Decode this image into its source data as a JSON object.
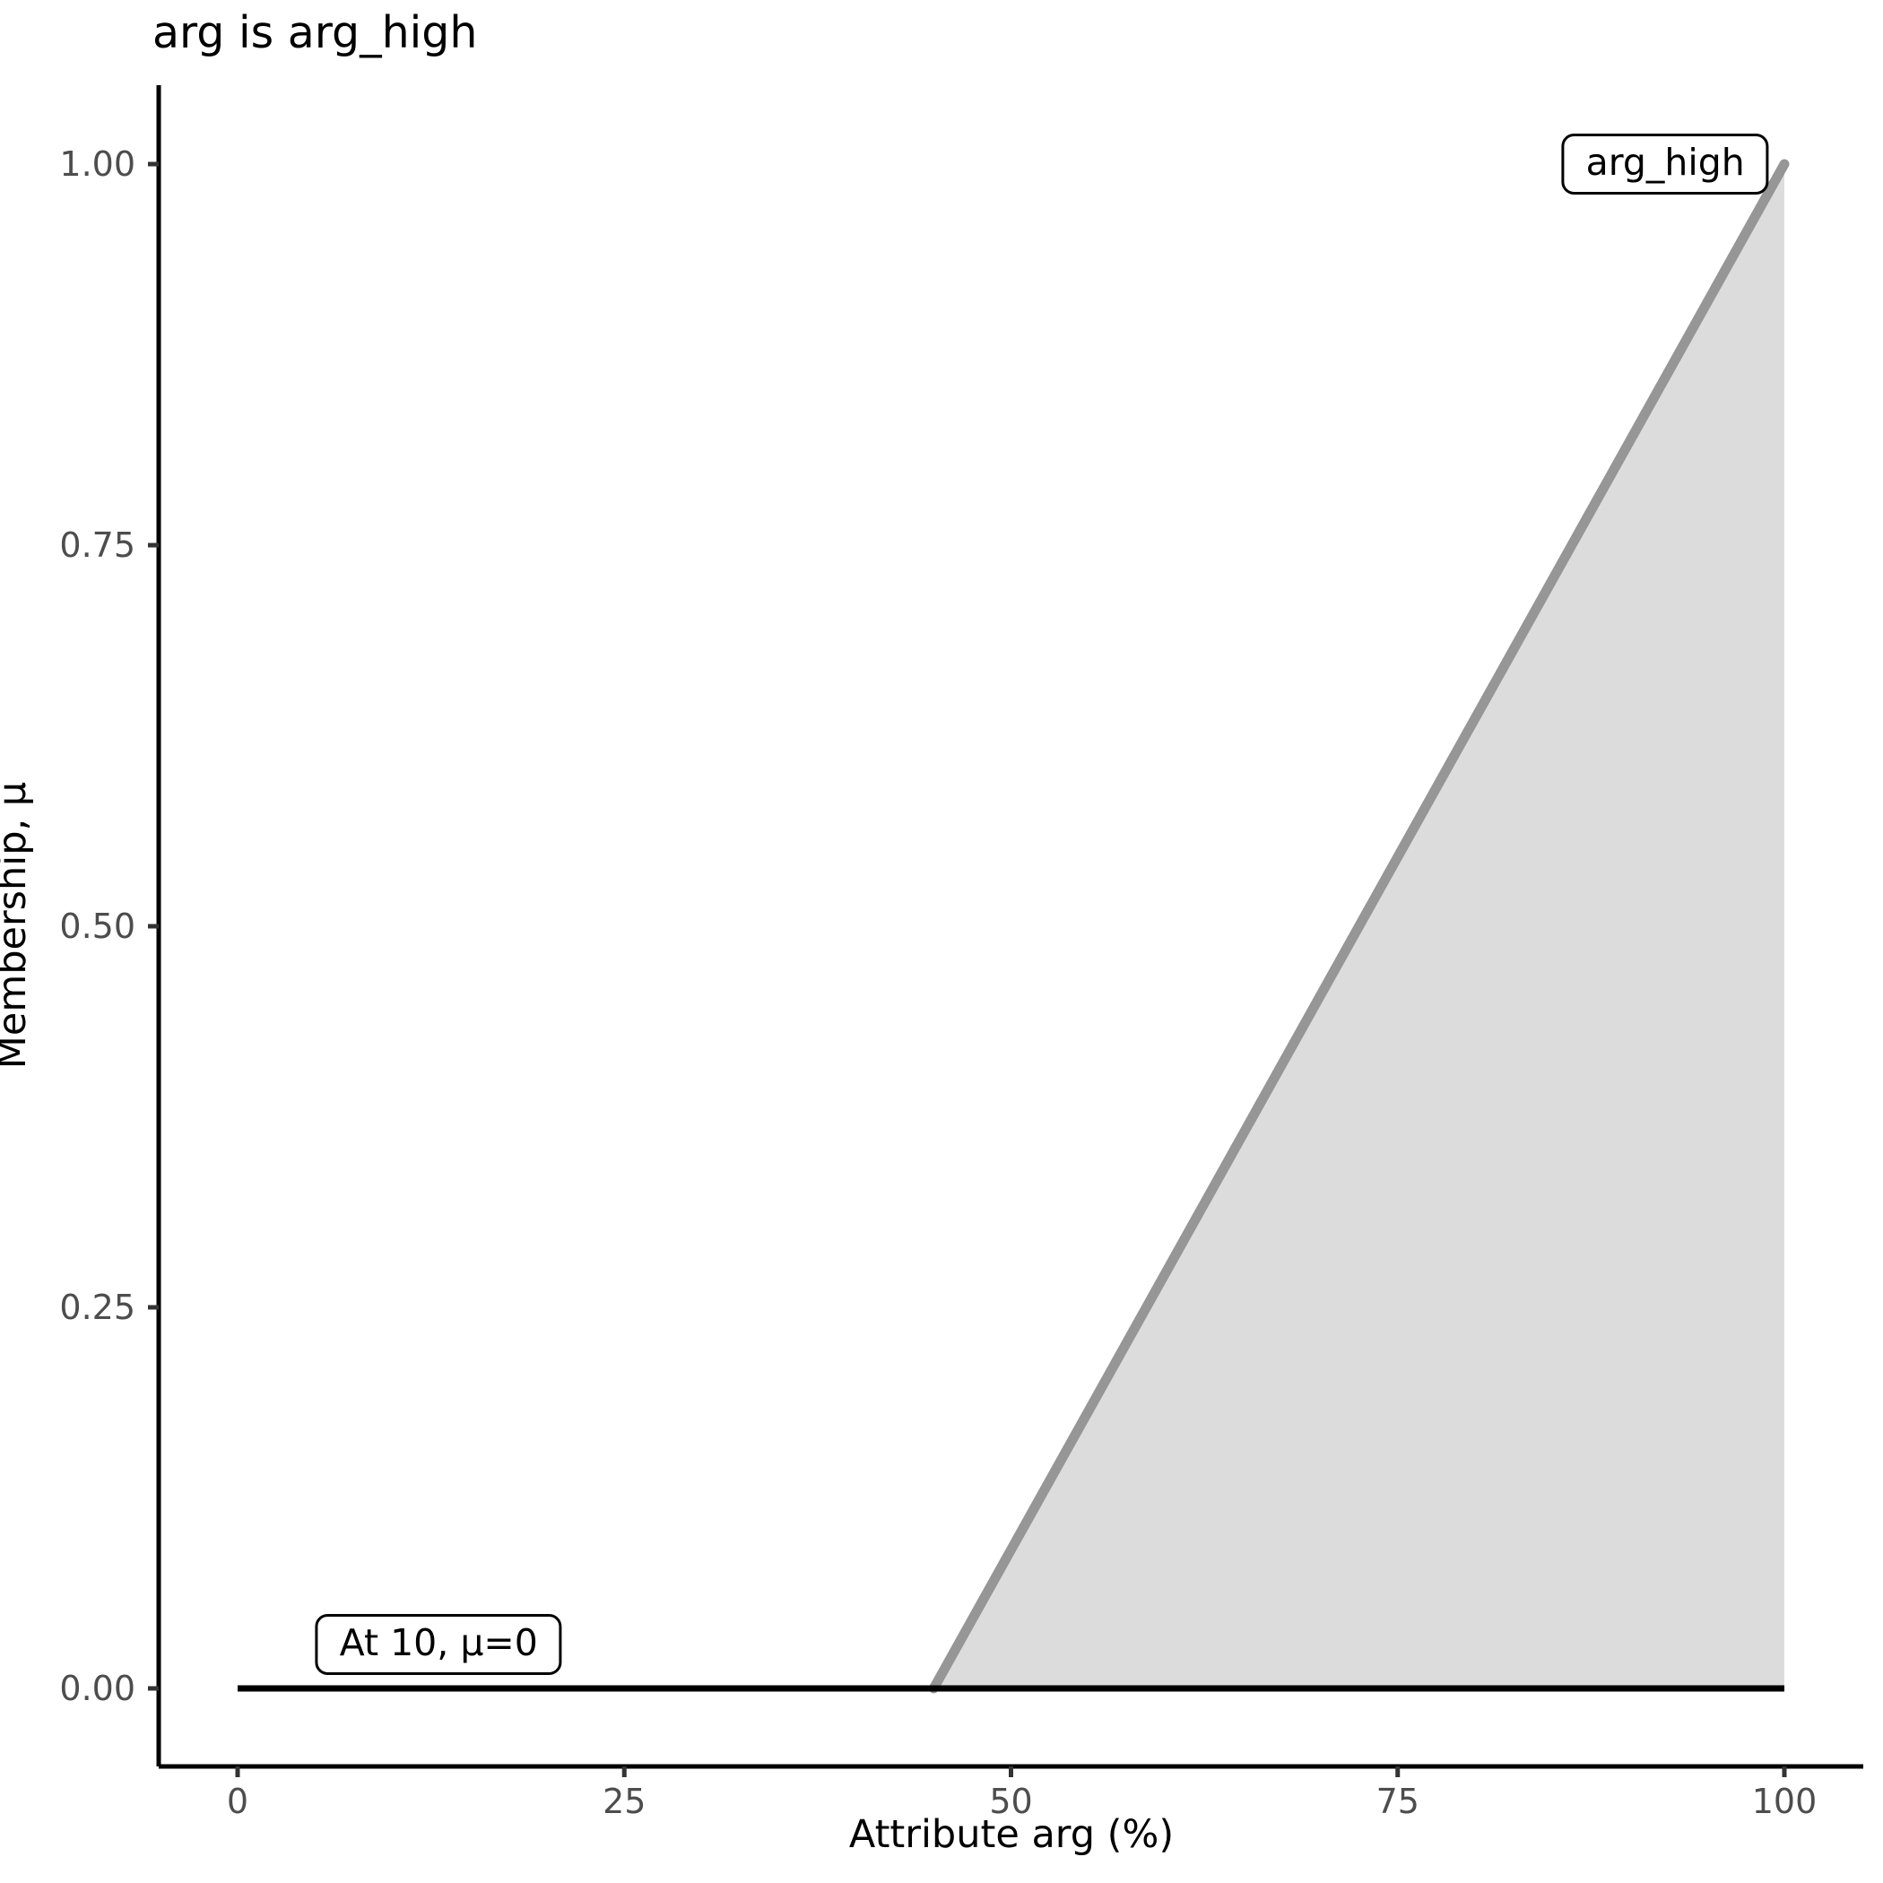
{
  "chart_data": {
    "type": "area",
    "title": "arg is arg_high",
    "xlabel": "Attribute arg (%)",
    "ylabel": "Membership, μ",
    "xlim": [
      0,
      100
    ],
    "ylim": [
      0,
      1
    ],
    "grid": false,
    "legend": "none",
    "x_ticks": [
      {
        "value": 0,
        "label": "0"
      },
      {
        "value": 25,
        "label": "25"
      },
      {
        "value": 50,
        "label": "50"
      },
      {
        "value": 75,
        "label": "75"
      },
      {
        "value": 100,
        "label": "100"
      }
    ],
    "y_ticks": [
      {
        "value": 0,
        "label": "0.00"
      },
      {
        "value": 0.25,
        "label": "0.25"
      },
      {
        "value": 0.5,
        "label": "0.50"
      },
      {
        "value": 0.75,
        "label": "0.75"
      },
      {
        "value": 1,
        "label": "1.00"
      }
    ],
    "series": [
      {
        "name": "arg_high membership function",
        "kind": "area-line",
        "color": "#969696",
        "fill": "#dcdcdc",
        "fill_baseline": 0,
        "points": [
          [
            45,
            0
          ],
          [
            100,
            1
          ]
        ]
      },
      {
        "name": "zero membership line",
        "kind": "line",
        "color": "#000000",
        "points": [
          [
            0,
            0
          ],
          [
            100,
            0
          ]
        ]
      }
    ],
    "annotations": [
      {
        "id": "set-name",
        "text": "arg_high",
        "x": 92.3,
        "y": 1.0
      },
      {
        "id": "value-readout",
        "text": "At 10, μ=0",
        "x": 13.0,
        "y": 0.029
      }
    ],
    "style": {
      "axis_color": "#000000",
      "tick_color": "#333333",
      "tick_label_color": "#4d4d4d",
      "background": "#ffffff"
    }
  }
}
